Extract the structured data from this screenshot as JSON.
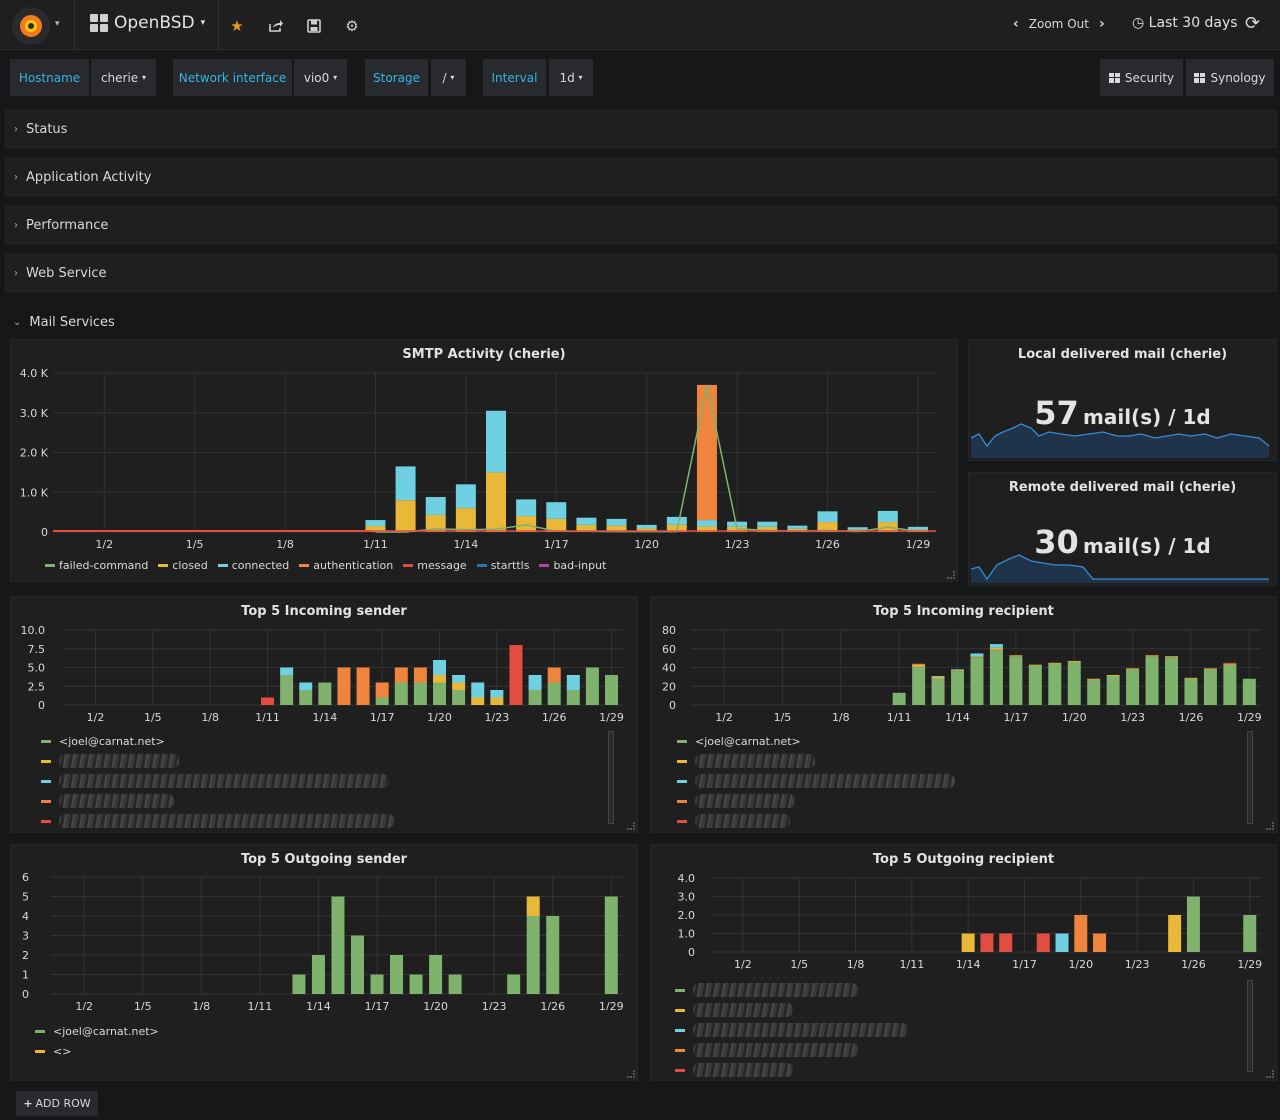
{
  "topbar": {
    "dashboard_title": "OpenBSD",
    "zoom_out": "Zoom Out",
    "time_range": "Last 30 days"
  },
  "variables": [
    {
      "label": "Hostname",
      "value": "cherie"
    },
    {
      "label": "Network interface",
      "value": "vio0"
    },
    {
      "label": "Storage",
      "value": "/"
    },
    {
      "label": "Interval",
      "value": "1d"
    }
  ],
  "links": [
    "Security",
    "Synology"
  ],
  "rows": [
    "Status",
    "Application Activity",
    "Performance",
    "Web Service"
  ],
  "open_row": "Mail Services",
  "add_row": "ADD ROW",
  "colors": {
    "green": "#7eb26d",
    "yellow": "#eab839",
    "cyan": "#6ed0e0",
    "orange": "#ef843c",
    "red": "#e24d42",
    "blue": "#1f78c1",
    "purple": "#ba43a9"
  },
  "x_ticks": [
    "1/2",
    "1/5",
    "1/8",
    "1/11",
    "1/14",
    "1/17",
    "1/20",
    "1/23",
    "1/26",
    "1/29"
  ],
  "smtp": {
    "title": "SMTP Activity (cherie)",
    "chart_data": {
      "type": "bar",
      "stacked": true,
      "title": "SMTP Activity (cherie)",
      "y_ticks": [
        "4.0 K",
        "3.0 K",
        "2.0 K",
        "1.0 K",
        "0"
      ],
      "ylim": [
        0,
        4000
      ],
      "days": [
        "1/11",
        "1/12",
        "1/13",
        "1/14",
        "1/15",
        "1/16",
        "1/17",
        "1/18",
        "1/19",
        "1/20",
        "1/21",
        "1/22",
        "1/23",
        "1/24",
        "1/25",
        "1/26",
        "1/27",
        "1/28",
        "1/29"
      ],
      "series": [
        {
          "name": "failed-command",
          "color": "#7eb26d",
          "type": "line",
          "values": [
            0,
            0,
            80,
            60,
            70,
            180,
            20,
            20,
            10,
            10,
            10,
            3700,
            80,
            40,
            20,
            40,
            10,
            120,
            20
          ]
        },
        {
          "name": "closed",
          "color": "#eab839",
          "values": [
            150,
            800,
            430,
            600,
            1500,
            400,
            330,
            180,
            160,
            90,
            180,
            140,
            130,
            130,
            80,
            250,
            60,
            250,
            60
          ]
        },
        {
          "name": "connected",
          "color": "#6ed0e0",
          "values": [
            150,
            850,
            450,
            600,
            1550,
            420,
            420,
            180,
            170,
            90,
            200,
            160,
            130,
            130,
            80,
            270,
            60,
            280,
            70
          ]
        },
        {
          "name": "authentication",
          "color": "#ef843c",
          "values": [
            0,
            0,
            0,
            0,
            0,
            0,
            0,
            0,
            0,
            0,
            0,
            3400,
            0,
            0,
            0,
            0,
            0,
            0,
            0
          ]
        },
        {
          "name": "message",
          "color": "#e24d42",
          "values": [
            0,
            0,
            0,
            0,
            0,
            0,
            0,
            0,
            0,
            0,
            0,
            0,
            0,
            0,
            0,
            0,
            0,
            0,
            0
          ]
        },
        {
          "name": "starttls",
          "color": "#1f78c1",
          "values": [
            0,
            0,
            0,
            0,
            0,
            0,
            0,
            0,
            0,
            0,
            0,
            0,
            0,
            0,
            0,
            0,
            0,
            0,
            0
          ]
        },
        {
          "name": "bad-input",
          "color": "#ba43a9",
          "values": [
            0,
            0,
            0,
            0,
            0,
            0,
            0,
            0,
            0,
            0,
            0,
            0,
            0,
            0,
            0,
            0,
            0,
            0,
            0
          ]
        }
      ]
    }
  },
  "local_mail": {
    "title": "Local delivered mail (cherie)",
    "value": "57",
    "unit": "mail(s) / 1d"
  },
  "remote_mail": {
    "title": "Remote delivered mail (cherie)",
    "value": "30",
    "unit": "mail(s) / 1d"
  },
  "in_sender": {
    "title": "Top 5 Incoming sender",
    "legend_first": "<joel@carnat.net>",
    "chart_data": {
      "type": "bar",
      "stacked": true,
      "y_ticks": [
        "10.0",
        "7.5",
        "5.0",
        "2.5",
        "0"
      ],
      "ylim": [
        0,
        10
      ],
      "days": [
        "1/11",
        "1/12",
        "1/13",
        "1/14",
        "1/15",
        "1/16",
        "1/17",
        "1/18",
        "1/19",
        "1/20",
        "1/21",
        "1/22",
        "1/23",
        "1/24",
        "1/25",
        "1/26",
        "1/27",
        "1/28",
        "1/29"
      ],
      "series": [
        {
          "name": "<joel@carnat.net>",
          "color": "#7eb26d",
          "values": [
            0,
            4,
            2,
            3,
            0,
            0,
            1,
            3,
            3,
            3,
            2,
            0,
            0,
            0,
            2,
            3,
            2,
            5,
            4
          ]
        },
        {
          "name": "sender-2",
          "color": "#eab839",
          "values": [
            0,
            0,
            0,
            0,
            0,
            0,
            0,
            0,
            0,
            1,
            1,
            1,
            1,
            0,
            0,
            0,
            0,
            0,
            0
          ]
        },
        {
          "name": "sender-3",
          "color": "#6ed0e0",
          "values": [
            0,
            1,
            1,
            0,
            0,
            0,
            0,
            0,
            0,
            2,
            1,
            2,
            1,
            0,
            2,
            0,
            2,
            0,
            0
          ]
        },
        {
          "name": "sender-4",
          "color": "#ef843c",
          "values": [
            0,
            0,
            0,
            0,
            5,
            5,
            2,
            2,
            2,
            0,
            0,
            0,
            0,
            0,
            0,
            2,
            0,
            0,
            0
          ]
        },
        {
          "name": "sender-5",
          "color": "#e24d42",
          "values": [
            1,
            0,
            0,
            0,
            0,
            0,
            0,
            0,
            0,
            0,
            0,
            0,
            0,
            8,
            0,
            0,
            0,
            0,
            0
          ]
        }
      ]
    }
  },
  "in_recipient": {
    "title": "Top 5 Incoming recipient",
    "legend_first": "<joel@carnat.net>",
    "chart_data": {
      "type": "bar",
      "stacked": true,
      "y_ticks": [
        "80",
        "60",
        "40",
        "20",
        "0"
      ],
      "ylim": [
        0,
        80
      ],
      "days": [
        "1/11",
        "1/12",
        "1/13",
        "1/14",
        "1/15",
        "1/16",
        "1/17",
        "1/18",
        "1/19",
        "1/20",
        "1/21",
        "1/22",
        "1/23",
        "1/24",
        "1/25",
        "1/26",
        "1/27",
        "1/28",
        "1/29"
      ],
      "series": [
        {
          "name": "<joel@carnat.net>",
          "color": "#7eb26d",
          "values": [
            13,
            41,
            28,
            36,
            51,
            59,
            52,
            42,
            44,
            46,
            27,
            31,
            38,
            52,
            51,
            28,
            38,
            43,
            28
          ]
        },
        {
          "name": "recipient-2",
          "color": "#eab839",
          "values": [
            0,
            2,
            2,
            1,
            1,
            2,
            1,
            1,
            1,
            1,
            1,
            1,
            1,
            1,
            1,
            1,
            1,
            1,
            0
          ]
        },
        {
          "name": "recipient-3",
          "color": "#6ed0e0",
          "values": [
            0,
            0,
            1,
            1,
            3,
            4,
            0,
            0,
            0,
            0,
            0,
            0,
            0,
            0,
            0,
            0,
            0,
            0,
            0
          ]
        },
        {
          "name": "recipient-4",
          "color": "#ef843c",
          "values": [
            0,
            1,
            0,
            0,
            0,
            0,
            0,
            0,
            0,
            0,
            0,
            0,
            0,
            0,
            0,
            0,
            0,
            0,
            0
          ]
        },
        {
          "name": "recipient-5",
          "color": "#e24d42",
          "values": [
            0,
            0,
            0,
            0,
            0,
            0,
            0,
            0,
            0,
            0,
            0,
            0,
            0,
            0,
            0,
            0,
            0,
            1,
            0
          ]
        }
      ]
    }
  },
  "out_sender": {
    "title": "Top 5 Outgoing sender",
    "legend": [
      "<joel@carnat.net>",
      "<>"
    ],
    "chart_data": {
      "type": "bar",
      "stacked": true,
      "y_ticks": [
        "6",
        "5",
        "4",
        "3",
        "2",
        "1",
        "0"
      ],
      "ylim": [
        0,
        6
      ],
      "days": [
        "1/13",
        "1/14",
        "1/15",
        "1/16",
        "1/17",
        "1/18",
        "1/19",
        "1/20",
        "1/21",
        "1/22",
        "1/23",
        "1/24",
        "1/25",
        "1/26",
        "1/27",
        "1/28",
        "1/29"
      ],
      "series": [
        {
          "name": "<joel@carnat.net>",
          "color": "#7eb26d",
          "values": [
            1,
            2,
            5,
            3,
            1,
            2,
            1,
            2,
            1,
            0,
            0,
            1,
            4,
            4,
            0,
            0,
            5
          ]
        },
        {
          "name": "<>",
          "color": "#eab839",
          "values": [
            0,
            0,
            0,
            0,
            0,
            0,
            0,
            0,
            0,
            0,
            0,
            0,
            1,
            0,
            0,
            0,
            0
          ]
        }
      ]
    }
  },
  "out_recipient": {
    "title": "Top 5 Outgoing recipient",
    "chart_data": {
      "type": "bar",
      "stacked": true,
      "y_ticks": [
        "4.0",
        "3.0",
        "2.0",
        "1.0",
        "0"
      ],
      "ylim": [
        0,
        4
      ],
      "days": [
        "1/14",
        "1/15",
        "1/16",
        "1/17",
        "1/18",
        "1/19",
        "1/20",
        "1/21",
        "1/22",
        "1/23",
        "1/24",
        "1/25",
        "1/26",
        "1/27",
        "1/28",
        "1/29"
      ],
      "series": [
        {
          "name": "recipient-1",
          "color": "#7eb26d",
          "values": [
            0,
            0,
            0,
            0,
            0,
            0,
            0,
            0,
            0,
            0,
            0,
            0,
            3,
            0,
            0,
            2
          ]
        },
        {
          "name": "recipient-2",
          "color": "#eab839",
          "values": [
            1,
            0,
            0,
            0,
            0,
            0,
            0,
            0,
            0,
            0,
            0,
            2,
            0,
            0,
            0,
            0
          ]
        },
        {
          "name": "recipient-3",
          "color": "#6ed0e0",
          "values": [
            0,
            0,
            0,
            0,
            0,
            1,
            0,
            0,
            0,
            0,
            0,
            0,
            0,
            0,
            0,
            0
          ]
        },
        {
          "name": "recipient-4",
          "color": "#ef843c",
          "values": [
            0,
            0,
            0,
            0,
            0,
            0,
            2,
            1,
            0,
            0,
            0,
            0,
            0,
            0,
            0,
            0
          ]
        },
        {
          "name": "recipient-5",
          "color": "#e24d42",
          "values": [
            0,
            1,
            1,
            0,
            1,
            0,
            0,
            0,
            0,
            0,
            0,
            0,
            0,
            0,
            0,
            0
          ]
        }
      ]
    }
  }
}
